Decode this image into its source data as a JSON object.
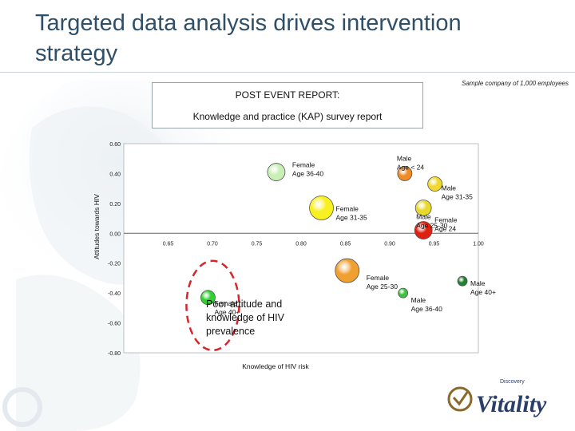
{
  "title": "Targeted data analysis drives intervention strategy",
  "sample_note": "Sample company of 1,000 employees",
  "report": {
    "line1": "POST EVENT REPORT:",
    "line2": "Knowledge and practice (KAP) survey report"
  },
  "annotation": {
    "line1": "Poor attitude and",
    "line2": "knowledge of HIV",
    "line3": "prevalence"
  },
  "logo": {
    "small": "Discovery",
    "large": "Vitality",
    "icon": "vitality-swirl-icon"
  },
  "chart_data": {
    "type": "scatter",
    "xlabel": "Knowledge of HIV risk",
    "ylabel": "Attitudes towards HIV",
    "xlim": [
      0.6,
      1.0
    ],
    "ylim": [
      -0.8,
      0.6
    ],
    "x_ticks": [
      "0.65",
      "0.70",
      "0.75",
      "0.80",
      "0.85",
      "0.90",
      "0.95",
      "1.00"
    ],
    "y_ticks": [
      "0.60",
      "0.40",
      "0.20",
      "0.00",
      "-0.20",
      "-0.40",
      "-0.60",
      "-0.80"
    ],
    "grid": false,
    "points": [
      {
        "label": [
          "Female",
          "Age 36-40"
        ],
        "x": 0.772,
        "y": 0.41,
        "size": 11,
        "color": "#c8f0b4"
      },
      {
        "label": [
          "Male",
          "Age < 24"
        ],
        "x": 0.917,
        "y": 0.4,
        "size": 9,
        "color": "#f08c28"
      },
      {
        "label": [
          "Male",
          "Age 31-35"
        ],
        "x": 0.951,
        "y": 0.33,
        "size": 9,
        "color": "#f0d830"
      },
      {
        "label": [
          "Female",
          "Age 31-35"
        ],
        "x": 0.823,
        "y": 0.17,
        "size": 15,
        "color": "#f8f020"
      },
      {
        "label": [
          "Male",
          "Age 25-30"
        ],
        "x": 0.938,
        "y": 0.17,
        "size": 10,
        "color": "#e8d82c"
      },
      {
        "label": [
          "Female",
          "Age 24"
        ],
        "x": 0.938,
        "y": 0.02,
        "size": 11,
        "color": "#e02010"
      },
      {
        "label": [
          "Female",
          "Age 25-30"
        ],
        "x": 0.852,
        "y": -0.25,
        "size": 15,
        "color": "#f0a030"
      },
      {
        "label": [
          "Male",
          "Age 36-40"
        ],
        "x": 0.915,
        "y": -0.4,
        "size": 6,
        "color": "#40c040"
      },
      {
        "label": [
          "Male",
          "Age 40+"
        ],
        "x": 0.982,
        "y": -0.32,
        "size": 6,
        "color": "#208030"
      },
      {
        "label": [
          "Female",
          "Age 40+"
        ],
        "x": 0.695,
        "y": -0.43,
        "size": 9,
        "color": "#30d030"
      }
    ],
    "highlight_ellipse_around": "Female Age 40+"
  }
}
